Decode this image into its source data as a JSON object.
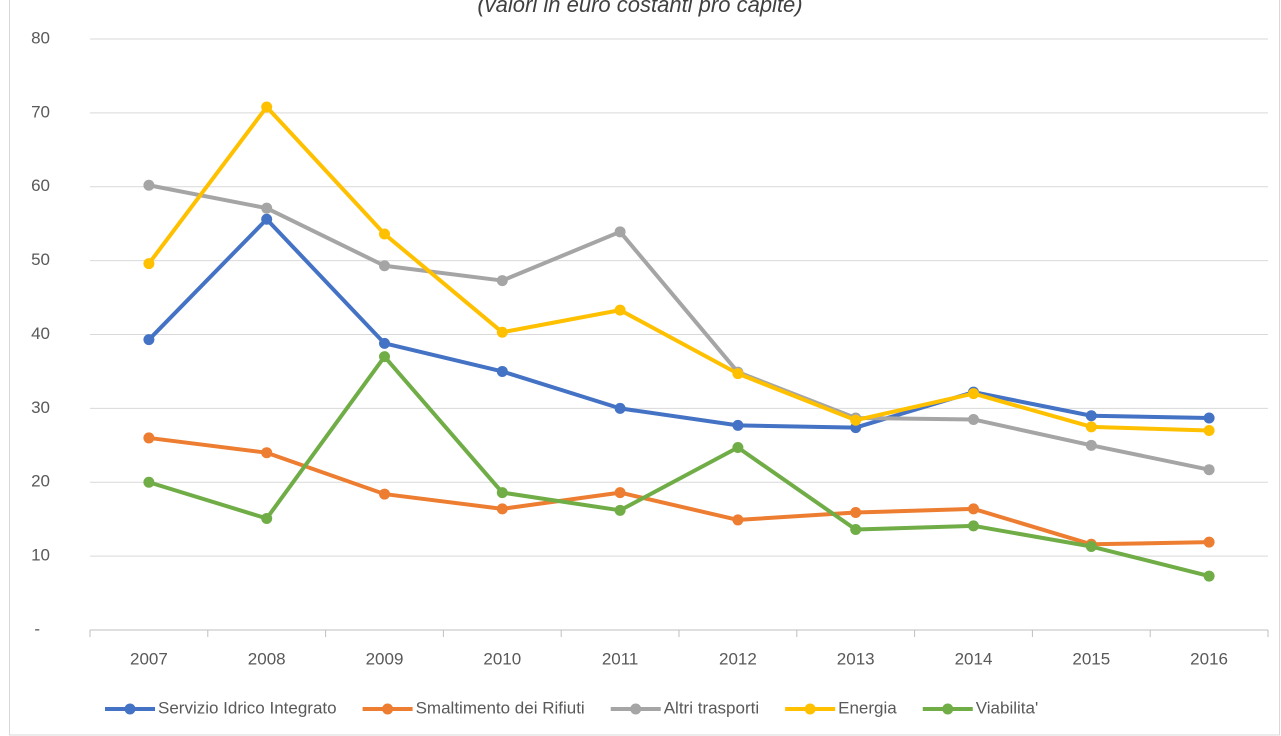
{
  "chart_data": {
    "type": "line",
    "subtitle": "(valori in euro costanti pro capite)",
    "categories": [
      "2007",
      "2008",
      "2009",
      "2010",
      "2011",
      "2012",
      "2013",
      "2014",
      "2015",
      "2016"
    ],
    "series": [
      {
        "name": "Servizio Idrico Integrato",
        "color": "#4472c4",
        "values": [
          39.3,
          55.6,
          38.8,
          35,
          30,
          27.7,
          27.4,
          32.2,
          29,
          28.7
        ]
      },
      {
        "name": "Smaltimento dei Rifiuti",
        "color": "#ed7d31",
        "values": [
          26,
          24,
          18.4,
          16.4,
          18.6,
          14.9,
          15.9,
          16.4,
          11.6,
          11.9
        ]
      },
      {
        "name": "Altri trasporti",
        "color": "#a5a5a5",
        "values": [
          60.2,
          57.1,
          49.3,
          47.3,
          53.9,
          34.9,
          28.7,
          28.5,
          25,
          21.7
        ]
      },
      {
        "name": "Energia",
        "color": "#ffc000",
        "values": [
          49.6,
          70.8,
          53.6,
          40.3,
          43.3,
          34.7,
          28.4,
          32,
          27.5,
          27
        ]
      },
      {
        "name": "Viabilita'",
        "color": "#70ad47",
        "values": [
          20,
          15.1,
          37,
          18.6,
          16.2,
          24.7,
          13.6,
          14.1,
          11.3,
          7.3
        ]
      }
    ],
    "ylim": [
      0,
      80
    ],
    "yticks": [
      {
        "value": 0,
        "label": "-"
      },
      10,
      20,
      30,
      40,
      50,
      60,
      70,
      80
    ],
    "grid": true,
    "legend": "bottom"
  }
}
